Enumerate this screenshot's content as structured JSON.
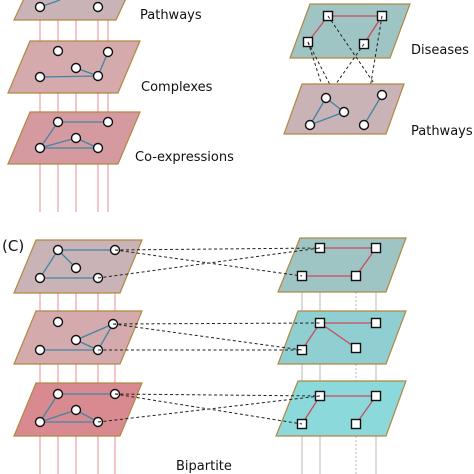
{
  "labels": {
    "top_left_pathways": "Pathways",
    "top_left_complexes": "Complexes",
    "top_left_coexpressions": "Co-expressions",
    "top_right_diseases": "Diseases",
    "top_right_pathways": "Pathways",
    "panel_c": "(C)",
    "bottom_bipartite": "Bipartite"
  },
  "colors": {
    "plane_mauve": "#c9b3b6",
    "plane_rose": "#d49a9f",
    "plane_pink": "#d98a90",
    "plane_teal": "#9fc4c4",
    "plane_cyan": "#8cd9db",
    "plane_stroke": "#b08840",
    "edge_blue": "#3f86a6",
    "edge_red": "#cc4a5a",
    "vline_red": "#e0707c",
    "vline_gray": "#a9a9a9"
  }
}
